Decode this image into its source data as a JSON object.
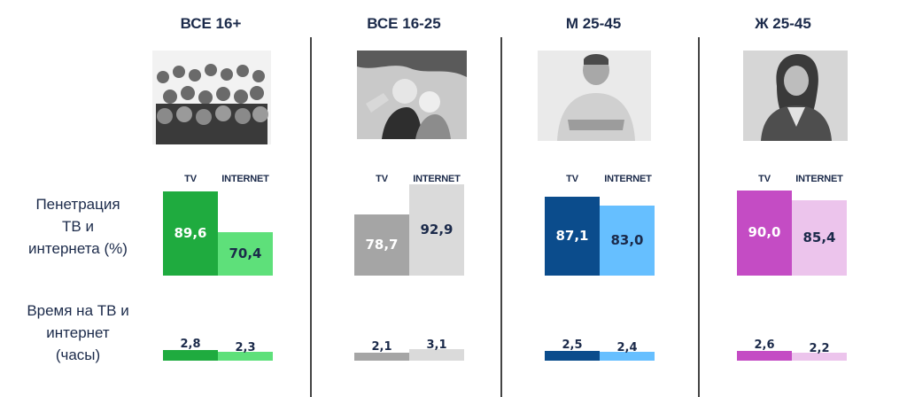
{
  "row_labels": {
    "penetration": [
      "Пенетрация",
      "ТВ и",
      "интернета (%)"
    ],
    "time": [
      "Время на ТВ и",
      "интернет",
      "(часы)"
    ]
  },
  "column_headers": {
    "tv": "TV",
    "internet": "INTERNET"
  },
  "chart_data": {
    "type": "bar",
    "categories": [
      "ВСЕ 16+",
      "ВСЕ 16-25",
      "М 25-45",
      "Ж 25-45"
    ],
    "series_keys": [
      "TV",
      "INTERNET"
    ],
    "penetration": {
      "tv": [
        89.6,
        78.7,
        87.1,
        90.0
      ],
      "internet": [
        70.4,
        92.9,
        83.0,
        85.4
      ],
      "tv_labels": [
        "89,6",
        "78,7",
        "87,1",
        "90,0"
      ],
      "internet_labels": [
        "70,4",
        "92,9",
        "83,0",
        "85,4"
      ]
    },
    "hours": {
      "tv": [
        2.8,
        2.1,
        2.5,
        2.6
      ],
      "internet": [
        2.3,
        3.1,
        2.4,
        2.2
      ],
      "tv_labels": [
        "2,8",
        "2,1",
        "2,5",
        "2,6"
      ],
      "internet_labels": [
        "2,3",
        "3,1",
        "2,4",
        "2,2"
      ]
    }
  },
  "colors": {
    "all16": {
      "tv": "#1fab3f",
      "internet": "#5ee07a",
      "tv_text": "#ffffff",
      "internet_text": "#1b2a4a"
    },
    "all16_25": {
      "tv": "#a5a5a5",
      "internet": "#dadada",
      "tv_text": "#ffffff",
      "internet_text": "#1b2a4a"
    },
    "m25_45": {
      "tv": "#0b4c8c",
      "internet": "#66bfff",
      "tv_text": "#ffffff",
      "internet_text": "#1b2a4a"
    },
    "f25_45": {
      "tv": "#c44cc4",
      "internet": "#ecc4ec",
      "tv_text": "#ffffff",
      "internet_text": "#1b2a4a"
    }
  },
  "photos": [
    "crowd-photo",
    "selfie-couple-photo",
    "smiling-man-photo",
    "smiling-woman-photo"
  ]
}
